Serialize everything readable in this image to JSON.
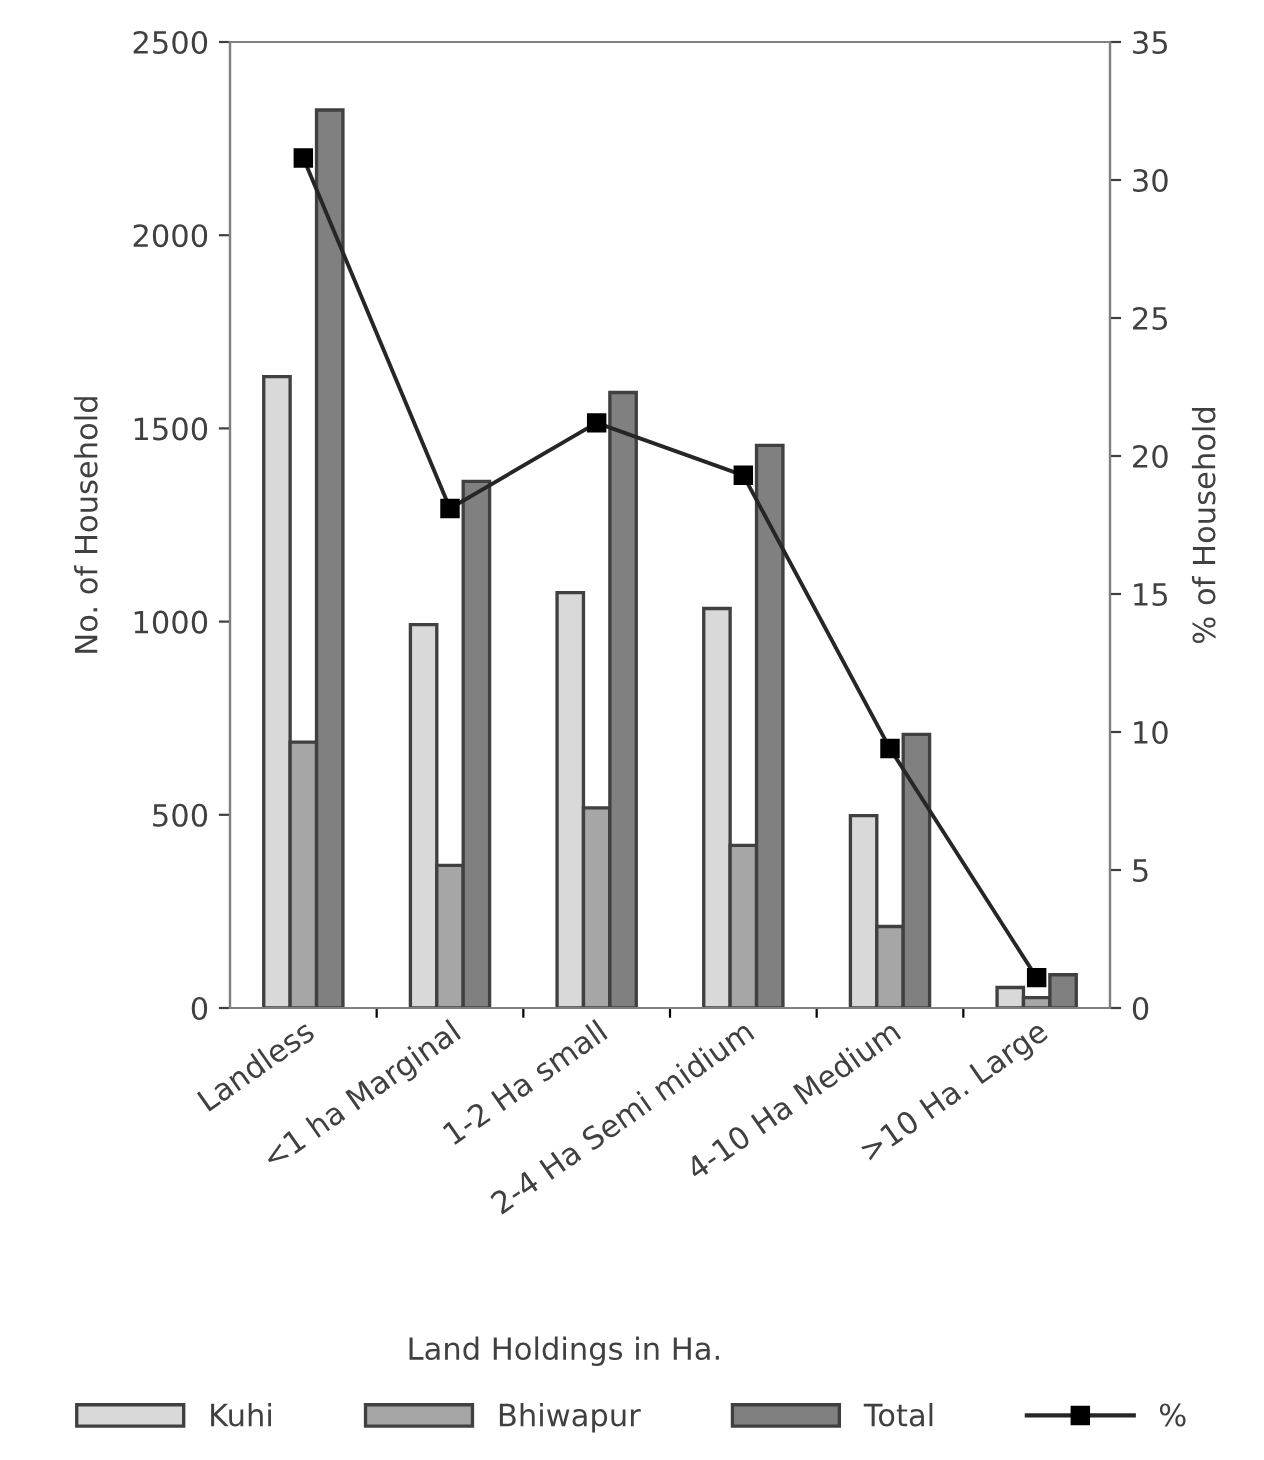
{
  "chart_data": {
    "type": "bar",
    "xlabel": "Land Holdings in Ha.",
    "ylabel": "No. of Household",
    "y2label": "% of Household",
    "categories": [
      "Landless",
      "<1 ha Marginal",
      "1-2 Ha small",
      "2-4 Ha Semi midium",
      "4-10 Ha Medium",
      ">10 Ha. Large"
    ],
    "series": [
      {
        "name": "Kuhi",
        "color": "#d9d9d9",
        "values": [
          1634,
          992,
          1075,
          1034,
          498,
          53
        ]
      },
      {
        "name": "Bhiwapur",
        "color": "#a6a6a6",
        "values": [
          688,
          369,
          518,
          421,
          211,
          27
        ]
      },
      {
        "name": "Total",
        "color": "#808080",
        "values": [
          2324,
          1363,
          1593,
          1456,
          708,
          86
        ]
      },
      {
        "name": "%",
        "type": "line",
        "axis": "y2",
        "color": "#262626",
        "marker": "square",
        "values": [
          30.8,
          18.1,
          21.2,
          19.3,
          9.4,
          1.1
        ]
      }
    ],
    "ylim": [
      0,
      2500
    ],
    "yticks": [
      0,
      500,
      1000,
      1500,
      2000,
      2500
    ],
    "y2lim": [
      0,
      35
    ],
    "y2ticks": [
      0,
      5,
      10,
      15,
      20,
      25,
      30,
      35
    ],
    "grid": false,
    "legend": "bottom"
  }
}
